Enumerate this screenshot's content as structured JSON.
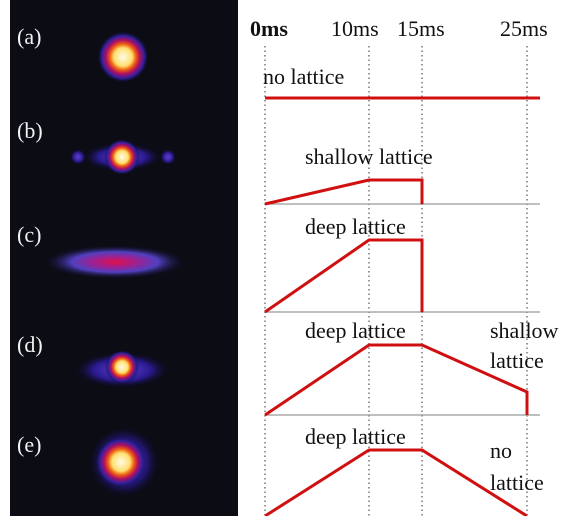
{
  "time_labels": [
    "0ms",
    "10ms",
    "15ms",
    "25ms"
  ],
  "panels": [
    {
      "label": "(a)",
      "annotations": [
        "no lattice"
      ]
    },
    {
      "label": "(b)",
      "annotations": [
        "shallow lattice"
      ]
    },
    {
      "label": "(c)",
      "annotations": [
        "deep lattice"
      ]
    },
    {
      "label": "(d)",
      "annotations": [
        "deep lattice",
        "shallow",
        "lattice"
      ]
    },
    {
      "label": "(e)",
      "annotations": [
        "deep lattice",
        "no",
        "lattice"
      ]
    }
  ]
}
